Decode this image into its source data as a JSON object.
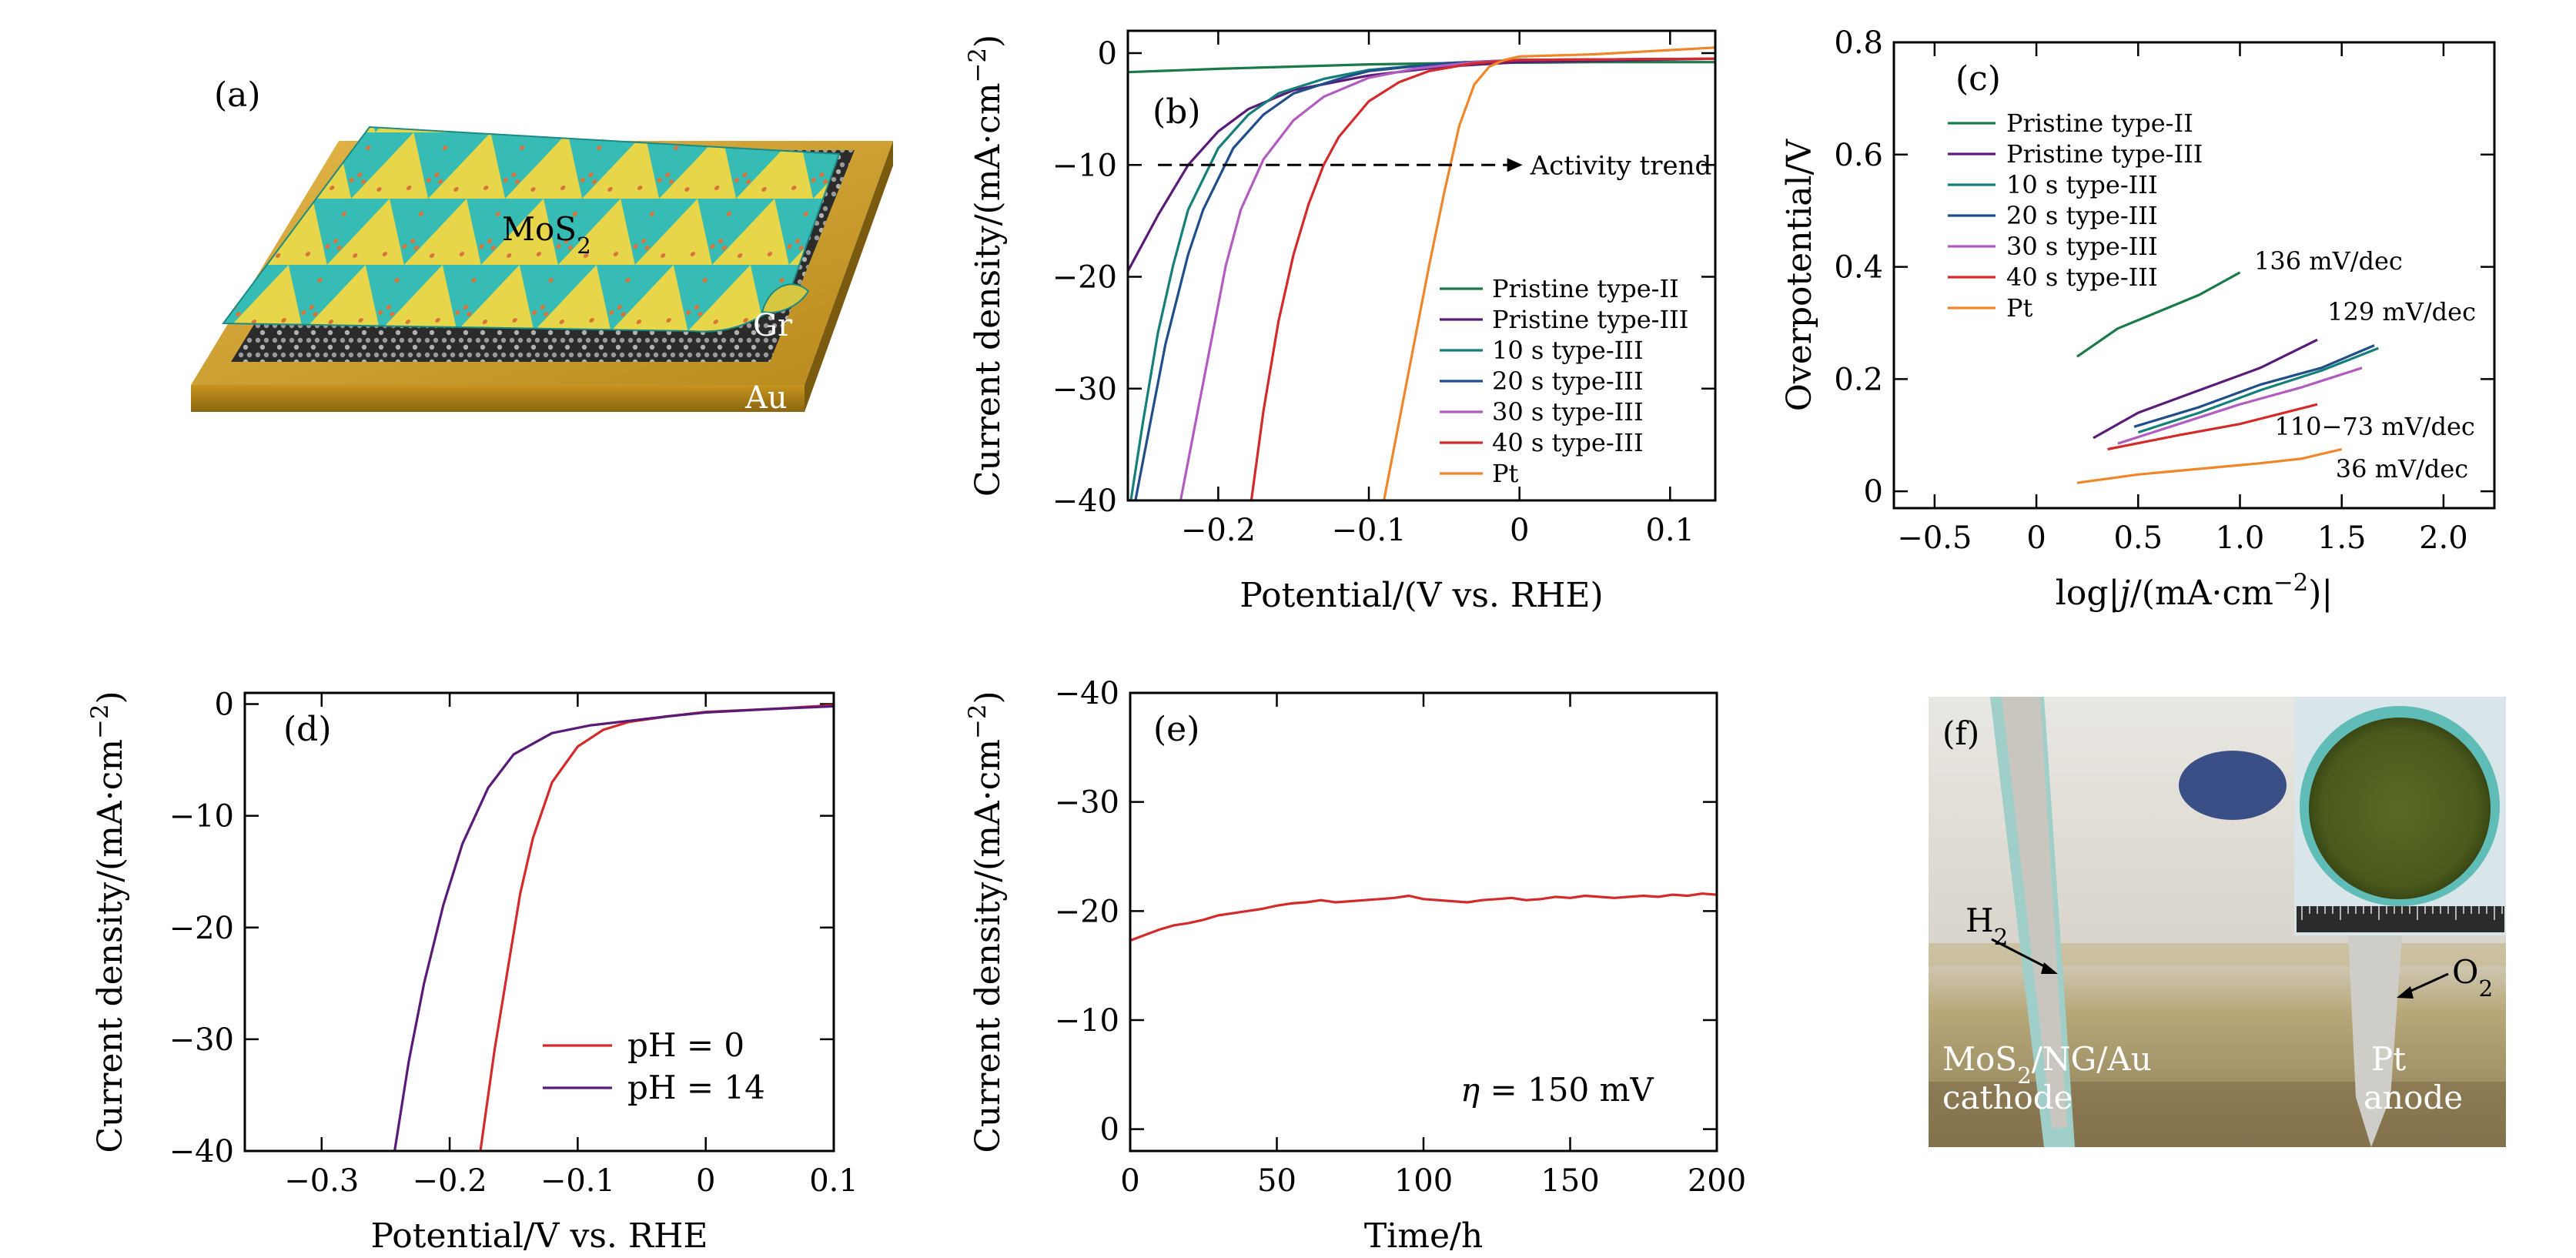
{
  "chart_data": [
    {
      "id": "a",
      "type": "illustration",
      "panel_label": "(a)",
      "labels": {
        "material": "MoS",
        "material_sub": "2",
        "layer": "Gr",
        "substrate": "Au"
      }
    },
    {
      "id": "b",
      "type": "line",
      "panel_label": "(b)",
      "xlabel": "Potential/(V vs. RHE)",
      "ylabel": "Current density/(mA·cm",
      "ylabel_sup": "−2",
      "ylabel_end": ")",
      "xlim": [
        -0.26,
        0.13
      ],
      "ylim": [
        -40,
        2
      ],
      "xticks": [
        -0.2,
        -0.1,
        0,
        0.1
      ],
      "xtick_labels": [
        "−0.2",
        "−0.1",
        "0",
        "0.1"
      ],
      "yticks": [
        0,
        -10,
        -20,
        -30,
        -40
      ],
      "ytick_labels": [
        "0",
        "−10",
        "−20",
        "−30",
        "−40"
      ],
      "annotation": {
        "text": "Activity trend",
        "y": -10,
        "x_from": -0.24,
        "x_to": 0.0
      },
      "legend_position": "bottom-right",
      "series": [
        {
          "name": "Pristine type-II",
          "color": "#1a7a48",
          "points": [
            [
              -0.26,
              -1.7
            ],
            [
              -0.2,
              -1.4
            ],
            [
              -0.15,
              -1.2
            ],
            [
              -0.1,
              -1.0
            ],
            [
              -0.05,
              -0.9
            ],
            [
              0,
              -0.85
            ],
            [
              0.05,
              -0.8
            ],
            [
              0.13,
              -0.8
            ]
          ]
        },
        {
          "name": "Pristine type-III",
          "color": "#5a1a78",
          "points": [
            [
              -0.26,
              -19.5
            ],
            [
              -0.24,
              -14.5
            ],
            [
              -0.22,
              -10
            ],
            [
              -0.2,
              -7
            ],
            [
              -0.18,
              -5
            ],
            [
              -0.15,
              -3.3
            ],
            [
              -0.1,
              -2
            ],
            [
              -0.05,
              -1.2
            ],
            [
              0,
              -0.8
            ],
            [
              0.13,
              -0.5
            ]
          ]
        },
        {
          "name": "10 s type-III",
          "color": "#157f7a",
          "points": [
            [
              -0.258,
              -40
            ],
            [
              -0.25,
              -33
            ],
            [
              -0.24,
              -25
            ],
            [
              -0.23,
              -19
            ],
            [
              -0.22,
              -14
            ],
            [
              -0.2,
              -8.5
            ],
            [
              -0.18,
              -5.5
            ],
            [
              -0.16,
              -3.6
            ],
            [
              -0.13,
              -2.3
            ],
            [
              -0.1,
              -1.5
            ],
            [
              -0.05,
              -0.9
            ],
            [
              0,
              -0.6
            ],
            [
              0.13,
              -0.5
            ]
          ]
        },
        {
          "name": "20 s type-III",
          "color": "#1f4e8a",
          "points": [
            [
              -0.255,
              -40
            ],
            [
              -0.245,
              -33
            ],
            [
              -0.235,
              -26
            ],
            [
              -0.22,
              -18
            ],
            [
              -0.21,
              -14
            ],
            [
              -0.19,
              -8.5
            ],
            [
              -0.17,
              -5.5
            ],
            [
              -0.15,
              -3.6
            ],
            [
              -0.12,
              -2.3
            ],
            [
              -0.1,
              -1.6
            ],
            [
              -0.05,
              -0.9
            ],
            [
              0,
              -0.6
            ],
            [
              0.13,
              -0.5
            ]
          ]
        },
        {
          "name": "30 s type-III",
          "color": "#b25bc0",
          "points": [
            [
              -0.225,
              -40
            ],
            [
              -0.215,
              -33
            ],
            [
              -0.205,
              -26
            ],
            [
              -0.195,
              -19
            ],
            [
              -0.185,
              -14
            ],
            [
              -0.17,
              -9.5
            ],
            [
              -0.15,
              -6
            ],
            [
              -0.13,
              -3.9
            ],
            [
              -0.1,
              -2.2
            ],
            [
              -0.07,
              -1.4
            ],
            [
              -0.03,
              -0.8
            ],
            [
              0,
              -0.6
            ],
            [
              0.13,
              -0.5
            ]
          ]
        },
        {
          "name": "40 s type-III",
          "color": "#d42a2a",
          "points": [
            [
              -0.178,
              -40
            ],
            [
              -0.17,
              -32
            ],
            [
              -0.16,
              -24
            ],
            [
              -0.15,
              -18
            ],
            [
              -0.14,
              -13.5
            ],
            [
              -0.13,
              -10
            ],
            [
              -0.12,
              -7.5
            ],
            [
              -0.1,
              -4.3
            ],
            [
              -0.08,
              -2.6
            ],
            [
              -0.06,
              -1.6
            ],
            [
              -0.03,
              -0.9
            ],
            [
              0,
              -0.6
            ],
            [
              0.13,
              -0.5
            ]
          ]
        },
        {
          "name": "Pt",
          "color": "#f0862a",
          "points": [
            [
              -0.09,
              -40
            ],
            [
              -0.08,
              -33
            ],
            [
              -0.07,
              -26
            ],
            [
              -0.06,
              -19
            ],
            [
              -0.05,
              -12.5
            ],
            [
              -0.04,
              -6.5
            ],
            [
              -0.03,
              -2.8
            ],
            [
              -0.02,
              -1.2
            ],
            [
              -0.01,
              -0.6
            ],
            [
              0,
              -0.3
            ],
            [
              0.05,
              -0.1
            ],
            [
              0.13,
              0.5
            ]
          ]
        }
      ]
    },
    {
      "id": "c",
      "type": "line",
      "panel_label": "(c)",
      "xlabel_pre": "log|",
      "xlabel_var": "j",
      "xlabel_mid": "/(mA·cm",
      "xlabel_sup": "−2",
      "xlabel_end": ")|",
      "ylabel": "Overpotential/V",
      "xlim": [
        -0.7,
        2.25
      ],
      "ylim": [
        -0.03,
        0.8
      ],
      "xticks": [
        -0.5,
        0,
        0.5,
        1.0,
        1.5,
        2.0
      ],
      "xtick_labels": [
        "−0.5",
        "0",
        "0.5",
        "1.0",
        "1.5",
        "2.0"
      ],
      "yticks": [
        0,
        0.2,
        0.4,
        0.6,
        0.8
      ],
      "ytick_labels": [
        "0",
        "0.2",
        "0.4",
        "0.6",
        "0.8"
      ],
      "legend_position": "top-left",
      "annotations": [
        {
          "text": "136 mV/dec",
          "x": 1.07,
          "y": 0.395
        },
        {
          "text": "129 mV/dec",
          "x": 1.43,
          "y": 0.305
        },
        {
          "text": "110−73 mV/dec",
          "x": 1.17,
          "y": 0.1
        },
        {
          "text": "36 mV/dec",
          "x": 1.47,
          "y": 0.025
        }
      ],
      "series": [
        {
          "name": "Pristine type-II",
          "color": "#1a7a48",
          "points": [
            [
              0.2,
              0.24
            ],
            [
              0.4,
              0.29
            ],
            [
              0.6,
              0.32
            ],
            [
              0.8,
              0.35
            ],
            [
              1.0,
              0.39
            ]
          ]
        },
        {
          "name": "Pristine type-III",
          "color": "#5a1a78",
          "points": [
            [
              0.28,
              0.095
            ],
            [
              0.5,
              0.14
            ],
            [
              0.8,
              0.18
            ],
            [
              1.1,
              0.22
            ],
            [
              1.38,
              0.27
            ]
          ]
        },
        {
          "name": "10 s type-III",
          "color": "#157f7a",
          "points": [
            [
              0.5,
              0.105
            ],
            [
              0.8,
              0.14
            ],
            [
              1.1,
              0.18
            ],
            [
              1.4,
              0.215
            ],
            [
              1.68,
              0.255
            ]
          ]
        },
        {
          "name": "20 s type-III",
          "color": "#1f4e8a",
          "points": [
            [
              0.48,
              0.115
            ],
            [
              0.8,
              0.15
            ],
            [
              1.1,
              0.19
            ],
            [
              1.4,
              0.22
            ],
            [
              1.66,
              0.26
            ]
          ]
        },
        {
          "name": "30 s type-III",
          "color": "#b25bc0",
          "points": [
            [
              0.4,
              0.085
            ],
            [
              0.7,
              0.12
            ],
            [
              1.0,
              0.155
            ],
            [
              1.3,
              0.185
            ],
            [
              1.6,
              0.22
            ]
          ]
        },
        {
          "name": "40 s type-III",
          "color": "#d42a2a",
          "points": [
            [
              0.35,
              0.075
            ],
            [
              0.7,
              0.1
            ],
            [
              1.0,
              0.12
            ],
            [
              1.38,
              0.155
            ]
          ]
        },
        {
          "name": "Pt",
          "color": "#f0862a",
          "points": [
            [
              0.2,
              0.015
            ],
            [
              0.5,
              0.03
            ],
            [
              0.8,
              0.04
            ],
            [
              1.1,
              0.05
            ],
            [
              1.3,
              0.058
            ],
            [
              1.5,
              0.075
            ]
          ]
        }
      ]
    },
    {
      "id": "d",
      "type": "line",
      "panel_label": "(d)",
      "xlabel": "Potential/V vs. RHE",
      "ylabel": "Current density/(mA·cm",
      "ylabel_sup": "−2",
      "ylabel_end": ")",
      "xlim": [
        -0.36,
        0.1
      ],
      "ylim": [
        -40,
        1
      ],
      "xticks": [
        -0.3,
        -0.2,
        -0.1,
        0,
        0.1
      ],
      "xtick_labels": [
        "−0.3",
        "−0.2",
        "−0.1",
        "0",
        "0.1"
      ],
      "yticks": [
        0,
        -10,
        -20,
        -30,
        -40
      ],
      "ytick_labels": [
        "0",
        "−10",
        "−20",
        "−30",
        "−40"
      ],
      "legend_position": "bottom-right",
      "series": [
        {
          "name": "pH = 0",
          "color": "#d42a2a",
          "points": [
            [
              -0.176,
              -40
            ],
            [
              -0.165,
              -31
            ],
            [
              -0.155,
              -24
            ],
            [
              -0.145,
              -17
            ],
            [
              -0.135,
              -12
            ],
            [
              -0.12,
              -7
            ],
            [
              -0.1,
              -3.8
            ],
            [
              -0.08,
              -2.3
            ],
            [
              -0.06,
              -1.6
            ],
            [
              -0.03,
              -1.1
            ],
            [
              0,
              -0.7
            ],
            [
              0.05,
              -0.45
            ],
            [
              0.1,
              -0.1
            ]
          ]
        },
        {
          "name": "pH = 14",
          "color": "#5a1a78",
          "points": [
            [
              -0.243,
              -40
            ],
            [
              -0.232,
              -32
            ],
            [
              -0.22,
              -25
            ],
            [
              -0.205,
              -18
            ],
            [
              -0.19,
              -12.5
            ],
            [
              -0.17,
              -7.5
            ],
            [
              -0.15,
              -4.5
            ],
            [
              -0.12,
              -2.6
            ],
            [
              -0.09,
              -1.9
            ],
            [
              -0.06,
              -1.5
            ],
            [
              -0.03,
              -1.1
            ],
            [
              0,
              -0.75
            ],
            [
              0.05,
              -0.45
            ],
            [
              0.1,
              -0.2
            ]
          ]
        }
      ]
    },
    {
      "id": "e",
      "type": "line",
      "panel_label": "(e)",
      "xlabel": "Time/h",
      "ylabel": "Current density/(mA·cm",
      "ylabel_sup": "−2",
      "ylabel_end": ")",
      "xlim": [
        0,
        200
      ],
      "ylim": [
        2,
        -40
      ],
      "xticks": [
        0,
        50,
        100,
        150,
        200
      ],
      "xtick_labels": [
        "0",
        "50",
        "100",
        "150",
        "200"
      ],
      "yticks": [
        0,
        -10,
        -20,
        -30,
        -40
      ],
      "ytick_labels": [
        "0",
        "−10",
        "−20",
        "−30",
        "−40"
      ],
      "annotation": {
        "eta_symbol": "η",
        "text": " = 150 mV"
      },
      "series": [
        {
          "name": "",
          "color": "#d42a2a",
          "points": [
            [
              0,
              -17.3
            ],
            [
              5,
              -17.8
            ],
            [
              10,
              -18.3
            ],
            [
              15,
              -18.7
            ],
            [
              20,
              -18.9
            ],
            [
              25,
              -19.2
            ],
            [
              30,
              -19.6
            ],
            [
              35,
              -19.8
            ],
            [
              40,
              -20.0
            ],
            [
              45,
              -20.2
            ],
            [
              50,
              -20.5
            ],
            [
              55,
              -20.7
            ],
            [
              60,
              -20.8
            ],
            [
              65,
              -21.0
            ],
            [
              70,
              -20.8
            ],
            [
              75,
              -20.9
            ],
            [
              80,
              -21.0
            ],
            [
              85,
              -21.1
            ],
            [
              90,
              -21.2
            ],
            [
              95,
              -21.4
            ],
            [
              100,
              -21.1
            ],
            [
              105,
              -21.0
            ],
            [
              110,
              -20.9
            ],
            [
              115,
              -20.8
            ],
            [
              120,
              -21.0
            ],
            [
              125,
              -21.1
            ],
            [
              130,
              -21.2
            ],
            [
              135,
              -21.0
            ],
            [
              140,
              -21.1
            ],
            [
              145,
              -21.3
            ],
            [
              150,
              -21.2
            ],
            [
              155,
              -21.4
            ],
            [
              160,
              -21.3
            ],
            [
              165,
              -21.2
            ],
            [
              170,
              -21.3
            ],
            [
              175,
              -21.4
            ],
            [
              180,
              -21.3
            ],
            [
              185,
              -21.5
            ],
            [
              190,
              -21.4
            ],
            [
              195,
              -21.6
            ],
            [
              200,
              -21.5
            ]
          ]
        }
      ]
    },
    {
      "id": "f",
      "type": "photo",
      "panel_label": "(f)",
      "labels": {
        "h2": "H",
        "h2_sub": "2",
        "o2": "O",
        "o2_sub": "2",
        "cathode_line1_a": "MoS",
        "cathode_line1_sub": "2",
        "cathode_line1_b": "/NG/Au",
        "cathode_line2": "cathode",
        "anode_line1": "Pt",
        "anode_line2": "anode"
      }
    }
  ]
}
